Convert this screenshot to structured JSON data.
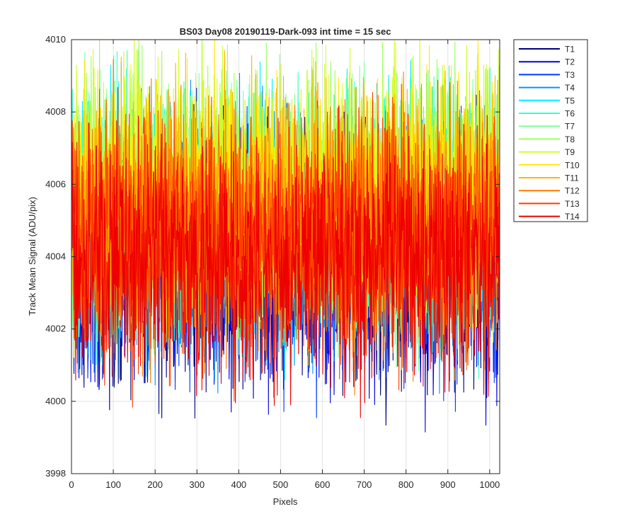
{
  "chart_data": {
    "type": "line",
    "title": "BS03 Day08 20190119-Dark-093 int time = 15 sec",
    "xlabel": "Pixels",
    "ylabel": "Track Mean Signal (ADU/pix)",
    "xlim": [
      0,
      1024
    ],
    "ylim": [
      3998,
      4010
    ],
    "xticks": [
      0,
      100,
      200,
      300,
      400,
      500,
      600,
      700,
      800,
      900,
      1000
    ],
    "yticks": [
      3998,
      4000,
      4002,
      4004,
      4006,
      4008,
      4010
    ],
    "grid": true,
    "legend_location": "outside-top-right",
    "series": [
      {
        "name": "T1",
        "color": "#00007f",
        "mean": 4003.9,
        "amplitude": 1.7
      },
      {
        "name": "T2",
        "color": "#0000d9",
        "mean": 4004.0,
        "amplitude": 1.7
      },
      {
        "name": "T3",
        "color": "#0038ff",
        "mean": 4004.3,
        "amplitude": 1.7
      },
      {
        "name": "T4",
        "color": "#0096ff",
        "mean": 4004.6,
        "amplitude": 1.7
      },
      {
        "name": "T5",
        "color": "#00f0ff",
        "mean": 4005.0,
        "amplitude": 1.7
      },
      {
        "name": "T6",
        "color": "#38ffc8",
        "mean": 4005.3,
        "amplitude": 1.7
      },
      {
        "name": "T7",
        "color": "#7fffa0",
        "mean": 4005.5,
        "amplitude": 1.7
      },
      {
        "name": "T8",
        "color": "#9cff60",
        "mean": 4005.7,
        "amplitude": 1.7
      },
      {
        "name": "T9",
        "color": "#d2ff2a",
        "mean": 4005.8,
        "amplitude": 1.7
      },
      {
        "name": "T10",
        "color": "#ffea00",
        "mean": 4005.6,
        "amplitude": 1.7
      },
      {
        "name": "T11",
        "color": "#ffb400",
        "mean": 4005.2,
        "amplitude": 1.7
      },
      {
        "name": "T12",
        "color": "#ff7a00",
        "mean": 4004.8,
        "amplitude": 1.7
      },
      {
        "name": "T13",
        "color": "#ff3c00",
        "mean": 4004.4,
        "amplitude": 1.7
      },
      {
        "name": "T14",
        "color": "#ee0000",
        "mean": 4004.0,
        "amplitude": 1.6
      }
    ]
  }
}
